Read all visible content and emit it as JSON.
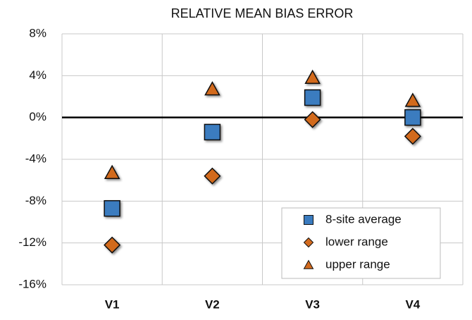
{
  "chart_data": {
    "type": "scatter",
    "title": "RELATIVE MEAN BIAS ERROR",
    "categories": [
      "V1",
      "V2",
      "V3",
      "V4"
    ],
    "series": [
      {
        "name": "8-site average",
        "color": "#3a7bbf",
        "marker": "square",
        "values": [
          -8.7,
          -1.4,
          1.9,
          0.0
        ]
      },
      {
        "name": "lower range",
        "color": "#d26a1e",
        "marker": "diamond",
        "values": [
          -12.2,
          -5.6,
          -0.2,
          -1.8
        ]
      },
      {
        "name": "upper range",
        "color": "#d26a1e",
        "marker": "triangle",
        "values": [
          -5.3,
          2.7,
          3.8,
          1.6
        ]
      }
    ],
    "ylim": [
      -16,
      8
    ],
    "yticks": [
      {
        "value": -16,
        "label": "-16%"
      },
      {
        "value": -12,
        "label": "-12%"
      },
      {
        "value": -8,
        "label": "-8%"
      },
      {
        "value": -4,
        "label": "-4%"
      },
      {
        "value": 0,
        "label": "0%"
      },
      {
        "value": 4,
        "label": "4%"
      },
      {
        "value": 8,
        "label": "8%"
      }
    ],
    "grid": true,
    "legend": "lower right"
  }
}
